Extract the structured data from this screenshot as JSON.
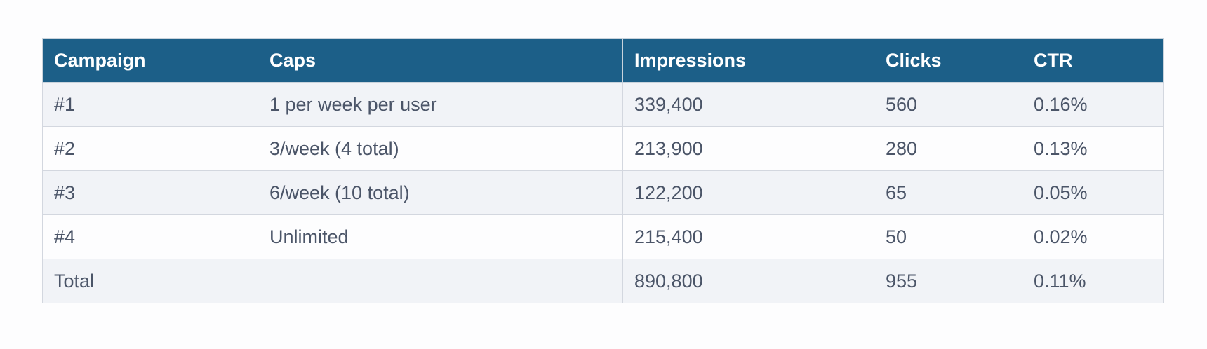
{
  "table": {
    "header": [
      "Campaign",
      "Caps",
      "Impressions",
      "Clicks",
      "CTR"
    ],
    "rows": [
      [
        "#1",
        "1 per week per user",
        "339,400",
        "560",
        "0.16%"
      ],
      [
        "#2",
        "3/week (4 total)",
        "213,900",
        "280",
        "0.13%"
      ],
      [
        "#3",
        "6/week (10 total)",
        "122,200",
        "65",
        "0.05%"
      ],
      [
        "#4",
        "Unlimited",
        "215,400",
        "50",
        "0.02%"
      ],
      [
        "Total",
        null,
        "890,800",
        "955",
        "0.11%"
      ]
    ]
  }
}
